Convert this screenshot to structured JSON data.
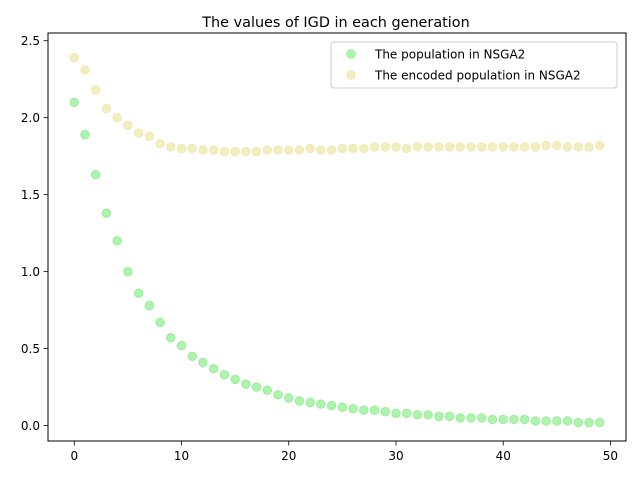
{
  "chart_data": {
    "type": "scatter",
    "title": "The values of IGD in each generation",
    "xlabel": "",
    "ylabel": "",
    "xlim": [
      -2.45,
      51.45
    ],
    "ylim": [
      -0.1,
      2.55
    ],
    "xticks": [
      0,
      10,
      20,
      30,
      40,
      50
    ],
    "xtick_labels": [
      "0",
      "10",
      "20",
      "30",
      "40",
      "50"
    ],
    "yticks": [
      0.0,
      0.5,
      1.0,
      1.5,
      2.0,
      2.5
    ],
    "ytick_labels": [
      "0.0",
      "0.5",
      "1.0",
      "1.5",
      "2.0",
      "2.5"
    ],
    "grid": false,
    "legend_position": "top-right",
    "x": [
      0,
      1,
      2,
      3,
      4,
      5,
      6,
      7,
      8,
      9,
      10,
      11,
      12,
      13,
      14,
      15,
      16,
      17,
      18,
      19,
      20,
      21,
      22,
      23,
      24,
      25,
      26,
      27,
      28,
      29,
      30,
      31,
      32,
      33,
      34,
      35,
      36,
      37,
      38,
      39,
      40,
      41,
      42,
      43,
      44,
      45,
      46,
      47,
      48,
      49
    ],
    "series": [
      {
        "name": "The population in NSGA2",
        "color": "#90ee90",
        "values": [
          2.1,
          1.89,
          1.63,
          1.38,
          1.2,
          1.0,
          0.86,
          0.78,
          0.67,
          0.57,
          0.52,
          0.45,
          0.41,
          0.37,
          0.33,
          0.3,
          0.27,
          0.25,
          0.23,
          0.2,
          0.18,
          0.16,
          0.15,
          0.14,
          0.13,
          0.12,
          0.11,
          0.1,
          0.1,
          0.09,
          0.08,
          0.08,
          0.07,
          0.07,
          0.06,
          0.06,
          0.05,
          0.05,
          0.05,
          0.04,
          0.04,
          0.04,
          0.04,
          0.03,
          0.03,
          0.03,
          0.03,
          0.02,
          0.02,
          0.02
        ]
      },
      {
        "name": "The encoded population in NSGA2",
        "color": "#eee8aa",
        "values": [
          2.39,
          2.31,
          2.18,
          2.06,
          2.0,
          1.95,
          1.9,
          1.88,
          1.83,
          1.81,
          1.8,
          1.8,
          1.79,
          1.79,
          1.78,
          1.78,
          1.78,
          1.78,
          1.79,
          1.79,
          1.79,
          1.79,
          1.8,
          1.79,
          1.79,
          1.8,
          1.8,
          1.8,
          1.81,
          1.81,
          1.81,
          1.8,
          1.81,
          1.81,
          1.81,
          1.81,
          1.81,
          1.81,
          1.81,
          1.81,
          1.81,
          1.81,
          1.81,
          1.81,
          1.82,
          1.82,
          1.81,
          1.81,
          1.81,
          1.82
        ]
      }
    ]
  }
}
